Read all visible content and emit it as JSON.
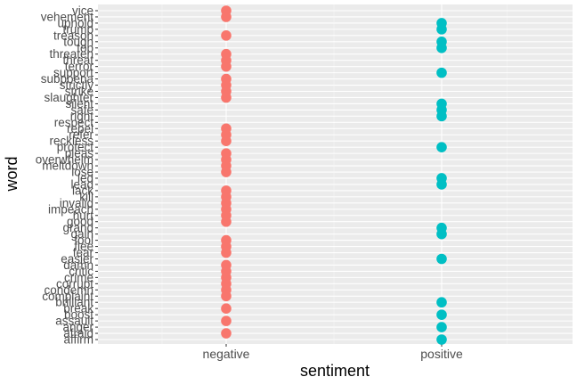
{
  "chart_data": {
    "type": "scatter",
    "xlabel": "sentiment",
    "ylabel": "word",
    "x_categories": [
      "negative",
      "positive"
    ],
    "y_categories": [
      "affirm",
      "afraid",
      "anger",
      "assault",
      "boost",
      "break",
      "brilliant",
      "complaint",
      "condemn",
      "corrupt",
      "crime",
      "critic",
      "damn",
      "easier",
      "fear",
      "flee",
      "fool",
      "gain",
      "grand",
      "good",
      "hurt",
      "impeach",
      "invalid",
      "kill",
      "lack",
      "lead",
      "led",
      "lose",
      "meltdown",
      "overwhelm",
      "pleas",
      "protect",
      "reckless",
      "refer",
      "repel",
      "respect",
      "right",
      "safe",
      "silent",
      "slaughter",
      "strike",
      "strictly",
      "subpoena",
      "support",
      "terror",
      "threat",
      "threaten",
      "top",
      "tough",
      "treason",
      "trump",
      "uphold",
      "vehement",
      "vice"
    ],
    "points": [
      {
        "word": "affirm",
        "sentiment": "positive"
      },
      {
        "word": "afraid",
        "sentiment": "negative"
      },
      {
        "word": "anger",
        "sentiment": "positive"
      },
      {
        "word": "assault",
        "sentiment": "negative"
      },
      {
        "word": "boost",
        "sentiment": "positive"
      },
      {
        "word": "break",
        "sentiment": "negative"
      },
      {
        "word": "brilliant",
        "sentiment": "positive"
      },
      {
        "word": "complaint",
        "sentiment": "negative"
      },
      {
        "word": "condemn",
        "sentiment": "negative"
      },
      {
        "word": "corrupt",
        "sentiment": "negative"
      },
      {
        "word": "crime",
        "sentiment": "negative"
      },
      {
        "word": "critic",
        "sentiment": "negative"
      },
      {
        "word": "damn",
        "sentiment": "negative"
      },
      {
        "word": "easier",
        "sentiment": "positive"
      },
      {
        "word": "fear",
        "sentiment": "negative"
      },
      {
        "word": "flee",
        "sentiment": "negative"
      },
      {
        "word": "fool",
        "sentiment": "negative"
      },
      {
        "word": "gain",
        "sentiment": "positive"
      },
      {
        "word": "grand",
        "sentiment": "positive"
      },
      {
        "word": "good",
        "sentiment": "negative"
      },
      {
        "word": "hurt",
        "sentiment": "negative"
      },
      {
        "word": "impeach",
        "sentiment": "negative"
      },
      {
        "word": "invalid",
        "sentiment": "negative"
      },
      {
        "word": "kill",
        "sentiment": "negative"
      },
      {
        "word": "lack",
        "sentiment": "negative"
      },
      {
        "word": "lead",
        "sentiment": "positive"
      },
      {
        "word": "led",
        "sentiment": "positive"
      },
      {
        "word": "lose",
        "sentiment": "negative"
      },
      {
        "word": "meltdown",
        "sentiment": "negative"
      },
      {
        "word": "overwhelm",
        "sentiment": "negative"
      },
      {
        "word": "pleas",
        "sentiment": "negative"
      },
      {
        "word": "protect",
        "sentiment": "positive"
      },
      {
        "word": "reckless",
        "sentiment": "negative"
      },
      {
        "word": "refer",
        "sentiment": "negative"
      },
      {
        "word": "repel",
        "sentiment": "negative"
      },
      {
        "word": "right",
        "sentiment": "positive"
      },
      {
        "word": "safe",
        "sentiment": "positive"
      },
      {
        "word": "silent",
        "sentiment": "positive"
      },
      {
        "word": "slaughter",
        "sentiment": "negative"
      },
      {
        "word": "strike",
        "sentiment": "negative"
      },
      {
        "word": "strictly",
        "sentiment": "negative"
      },
      {
        "word": "subpoena",
        "sentiment": "negative"
      },
      {
        "word": "support",
        "sentiment": "positive"
      },
      {
        "word": "terror",
        "sentiment": "negative"
      },
      {
        "word": "threat",
        "sentiment": "negative"
      },
      {
        "word": "threaten",
        "sentiment": "negative"
      },
      {
        "word": "top",
        "sentiment": "positive"
      },
      {
        "word": "tough",
        "sentiment": "positive"
      },
      {
        "word": "treason",
        "sentiment": "negative"
      },
      {
        "word": "trump",
        "sentiment": "positive"
      },
      {
        "word": "uphold",
        "sentiment": "positive"
      },
      {
        "word": "vehement",
        "sentiment": "negative"
      },
      {
        "word": "vice",
        "sentiment": "negative"
      }
    ],
    "colors": {
      "negative": "#F8766D",
      "positive": "#00BFC4",
      "panel": "#EBEBEB",
      "grid_major": "#FFFFFF",
      "grid_minor": "#F3F3F3",
      "tick_text": "#4D4D4D",
      "tick_mark": "#333333"
    },
    "grid": true,
    "legend": "none"
  }
}
